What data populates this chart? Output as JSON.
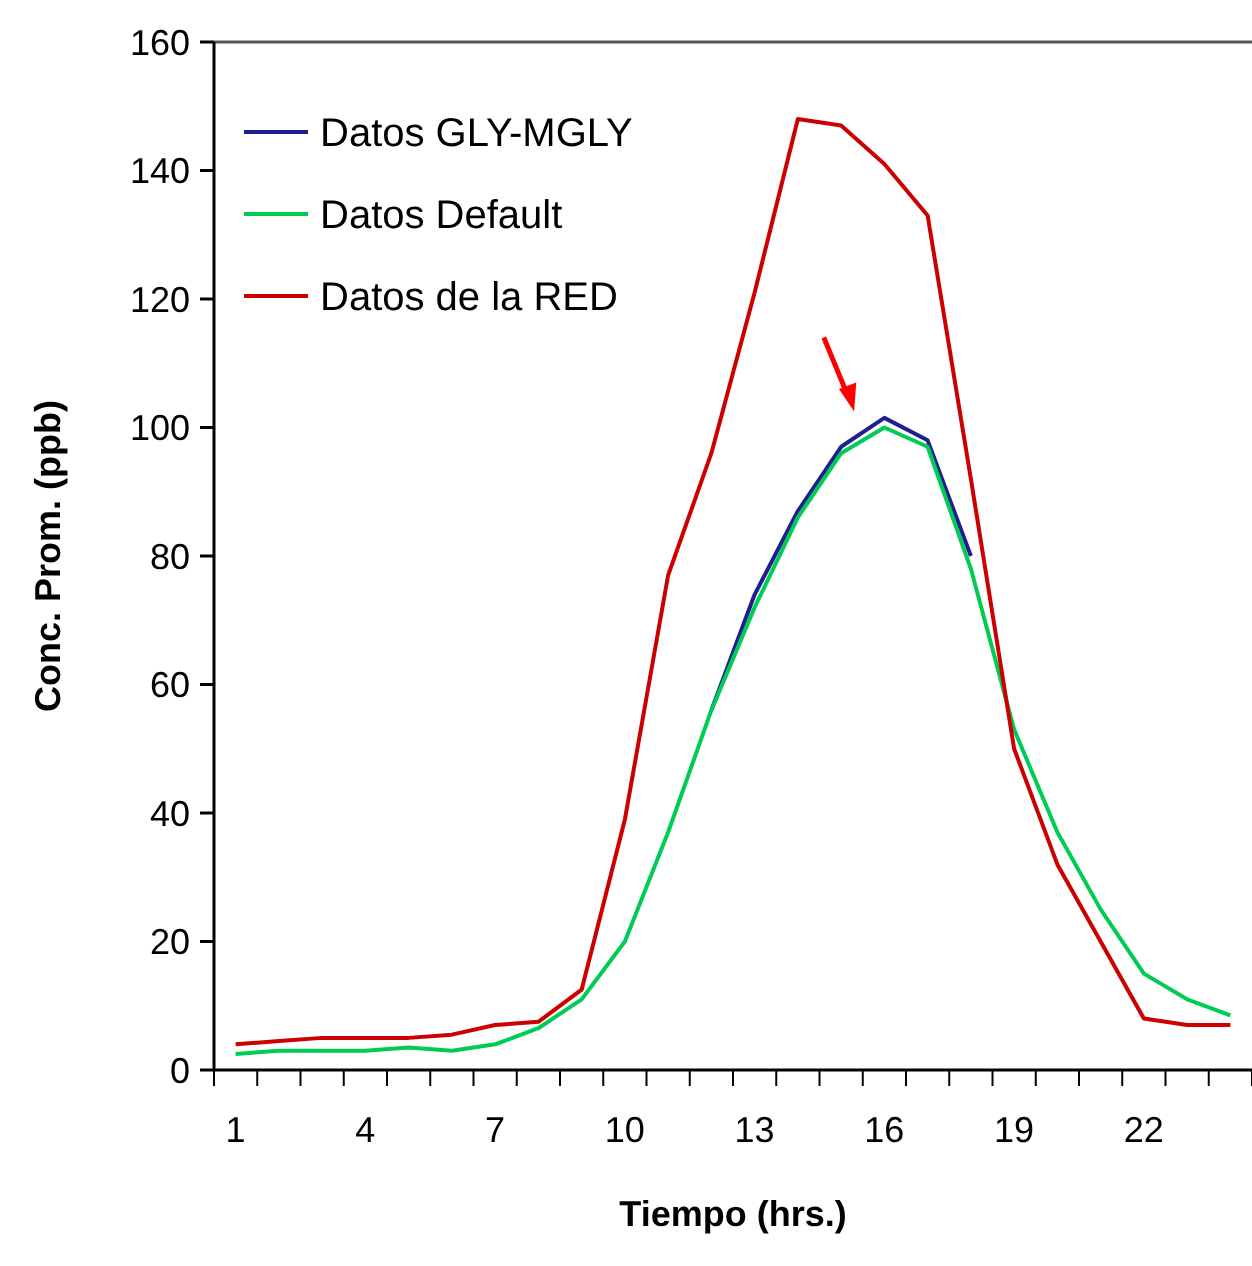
{
  "chart_data": {
    "type": "line",
    "xlabel": "Tiempo (hrs.)",
    "ylabel": "Conc. Prom. (ppb)",
    "categories": [
      "1",
      null,
      null,
      "4",
      null,
      null,
      "7",
      null,
      null,
      "10",
      null,
      null,
      "13",
      null,
      null,
      "16",
      null,
      null,
      "19",
      null,
      null,
      "22",
      null,
      null
    ],
    "series": [
      {
        "name": "Datos GLY-MGLY",
        "color": "#1f1f8f",
        "values": [
          null,
          null,
          null,
          null,
          null,
          null,
          null,
          null,
          null,
          null,
          null,
          56,
          74,
          87,
          97,
          101.5,
          98,
          80,
          null,
          null,
          null,
          null,
          null,
          null
        ]
      },
      {
        "name": "Datos Default",
        "color": "#00cc55",
        "values": [
          2.5,
          3,
          3,
          3,
          3.5,
          3,
          4,
          6.5,
          11,
          20,
          37,
          56,
          72,
          86,
          96,
          100,
          97,
          78,
          53,
          37,
          25,
          15,
          11,
          8.5
        ]
      },
      {
        "name": "Datos de la RED",
        "color": "#cc0000",
        "values": [
          4,
          4.5,
          5,
          5,
          5,
          5.5,
          7,
          7.5,
          12.5,
          39,
          77,
          96,
          121,
          148,
          147,
          141,
          133,
          92,
          50,
          32,
          20,
          8,
          7,
          7
        ]
      }
    ],
    "ylim": [
      0,
      160
    ],
    "yticks": [
      0,
      20,
      40,
      60,
      80,
      100,
      120,
      140,
      160
    ],
    "legend": "top left",
    "grid": false,
    "line_style": "solid"
  }
}
